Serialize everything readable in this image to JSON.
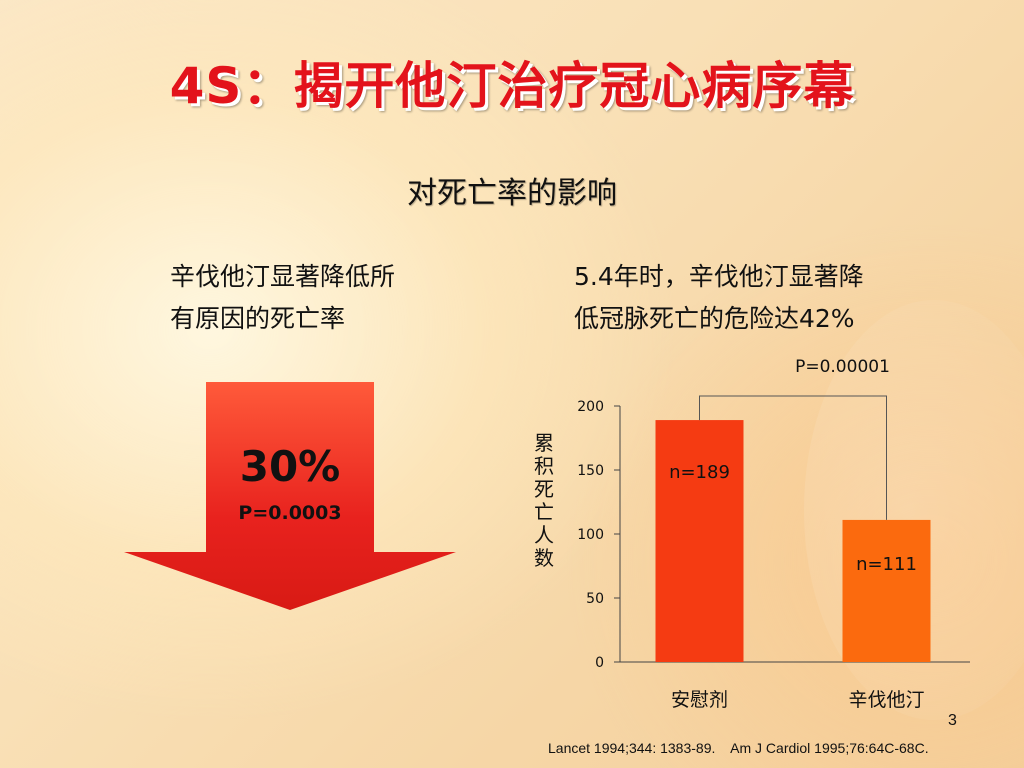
{
  "slide": {
    "title": "4S：揭开他汀治疗冠心病序幕",
    "subtitle": "对死亡率的影响",
    "left_text": [
      "辛伐他汀显著降低所",
      "有原因的死亡率"
    ],
    "right_text": [
      "5.4年时，辛伐他汀显著降",
      "低冠脉死亡的危险达42%"
    ],
    "arrow": {
      "percent": "30%",
      "p_value": "P=0.0003",
      "color": "#e8221e"
    },
    "footnote": "Lancet 1994;344: 1383-89.    Am J Cardiol 1995;76:64C-68C.",
    "page_number": "3"
  },
  "chart_data": {
    "type": "bar",
    "categories": [
      "安慰剂",
      "辛伐他汀"
    ],
    "values": [
      189,
      111
    ],
    "data_labels": [
      "n=189",
      "n=111"
    ],
    "colors": [
      "#f53b12",
      "#fb6a0e"
    ],
    "ylabel": "累积死亡人数",
    "ylim": [
      0,
      200
    ],
    "yticks": [
      0,
      50,
      100,
      150,
      200
    ],
    "grid": false,
    "annotation": "P=0.00001"
  }
}
